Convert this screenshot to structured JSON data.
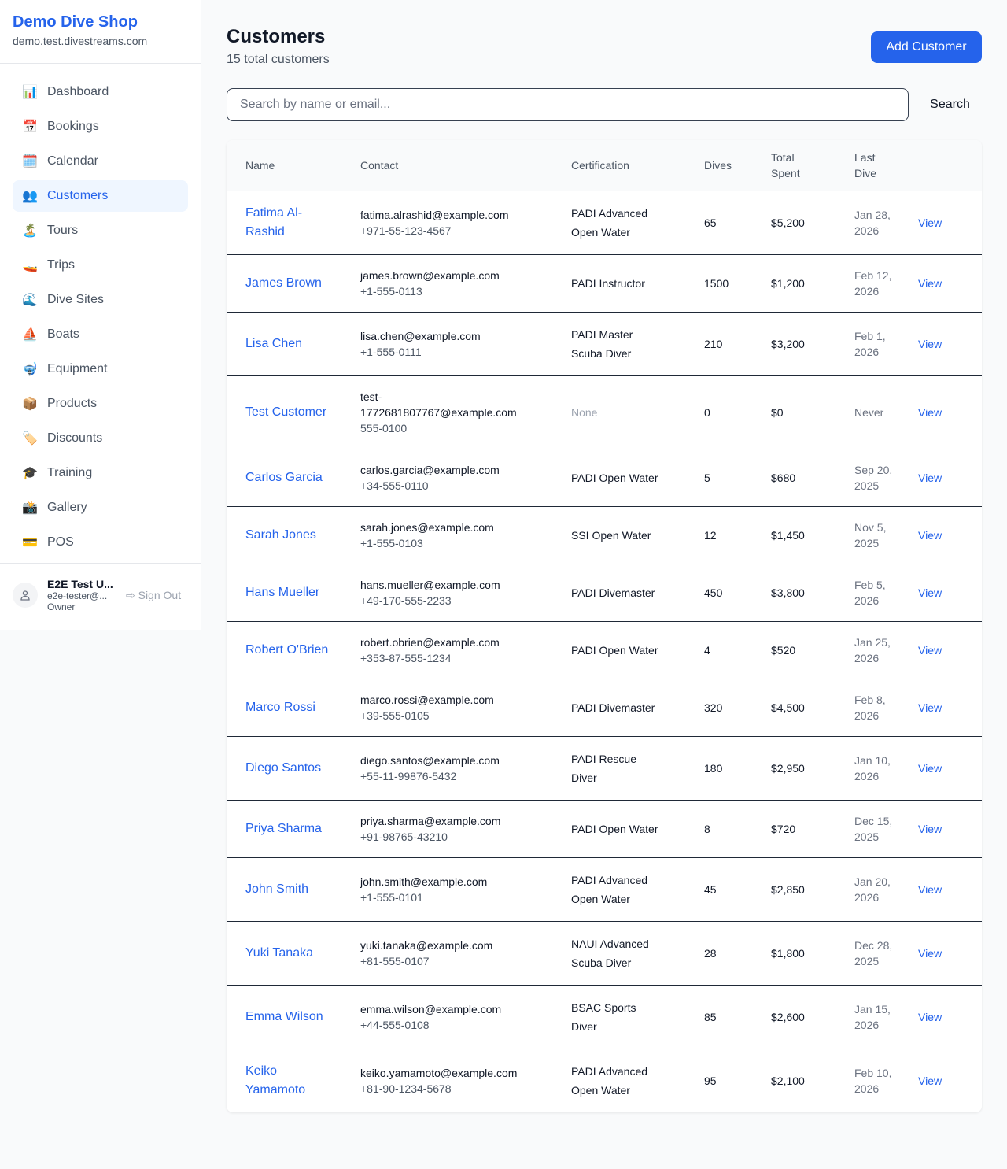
{
  "sidebar": {
    "brand": "Demo Dive Shop",
    "domain": "demo.test.divestreams.com",
    "items": [
      {
        "label": "Dashboard",
        "icon": "📊",
        "name": "chart-icon"
      },
      {
        "label": "Bookings",
        "icon": "📅",
        "name": "calendar-date-icon"
      },
      {
        "label": "Calendar",
        "icon": "🗓️",
        "name": "calendar-icon"
      },
      {
        "label": "Customers",
        "icon": "👥",
        "name": "users-icon",
        "active": true
      },
      {
        "label": "Tours",
        "icon": "🏝️",
        "name": "island-icon"
      },
      {
        "label": "Trips",
        "icon": "🚤",
        "name": "speedboat-icon"
      },
      {
        "label": "Dive Sites",
        "icon": "🌊",
        "name": "wave-icon"
      },
      {
        "label": "Boats",
        "icon": "⛵",
        "name": "sailboat-icon"
      },
      {
        "label": "Equipment",
        "icon": "🤿",
        "name": "diving-mask-icon"
      },
      {
        "label": "Products",
        "icon": "📦",
        "name": "package-icon"
      },
      {
        "label": "Discounts",
        "icon": "🏷️",
        "name": "tag-icon"
      },
      {
        "label": "Training",
        "icon": "🎓",
        "name": "graduation-cap-icon"
      },
      {
        "label": "Gallery",
        "icon": "📸",
        "name": "camera-icon"
      },
      {
        "label": "POS",
        "icon": "💳",
        "name": "credit-card-icon"
      }
    ],
    "user": {
      "name": "E2E Test U...",
      "email": "e2e-tester@...",
      "role": "Owner",
      "sign_out": "Sign Out"
    }
  },
  "header": {
    "title": "Customers",
    "subtitle": "15 total customers",
    "add_button": "Add Customer"
  },
  "search": {
    "placeholder": "Search by name or email...",
    "button": "Search"
  },
  "table": {
    "columns": [
      "Name",
      "Contact",
      "Certification",
      "Dives",
      "Total Spent",
      "Last Dive"
    ],
    "view_label": "View",
    "rows": [
      [
        "Fatima Al-Rashid",
        "fatima.alrashid@example.com",
        "+971-55-123-4567",
        "PADI Advanced Open Water",
        "65",
        "$5,200",
        "Jan 28, 2026"
      ],
      [
        "James Brown",
        "james.brown@example.com",
        "+1-555-0113",
        "PADI Instructor",
        "1500",
        "$1,200",
        "Feb 12, 2026"
      ],
      [
        "Lisa Chen",
        "lisa.chen@example.com",
        "+1-555-0111",
        "PADI Master Scuba Diver",
        "210",
        "$3,200",
        "Feb 1, 2026"
      ],
      [
        "Test Customer",
        "test-1772681807767@example.com",
        "555-0100",
        "None",
        "0",
        "$0",
        "Never"
      ],
      [
        "Carlos Garcia",
        "carlos.garcia@example.com",
        "+34-555-0110",
        "PADI Open Water",
        "5",
        "$680",
        "Sep 20, 2025"
      ],
      [
        "Sarah Jones",
        "sarah.jones@example.com",
        "+1-555-0103",
        "SSI Open Water",
        "12",
        "$1,450",
        "Nov 5, 2025"
      ],
      [
        "Hans Mueller",
        "hans.mueller@example.com",
        "+49-170-555-2233",
        "PADI Divemaster",
        "450",
        "$3,800",
        "Feb 5, 2026"
      ],
      [
        "Robert O'Brien",
        "robert.obrien@example.com",
        "+353-87-555-1234",
        "PADI Open Water",
        "4",
        "$520",
        "Jan 25, 2026"
      ],
      [
        "Marco Rossi",
        "marco.rossi@example.com",
        "+39-555-0105",
        "PADI Divemaster",
        "320",
        "$4,500",
        "Feb 8, 2026"
      ],
      [
        "Diego Santos",
        "diego.santos@example.com",
        "+55-11-99876-5432",
        "PADI Rescue Diver",
        "180",
        "$2,950",
        "Jan 10, 2026"
      ],
      [
        "Priya Sharma",
        "priya.sharma@example.com",
        "+91-98765-43210",
        "PADI Open Water",
        "8",
        "$720",
        "Dec 15, 2025"
      ],
      [
        "John Smith",
        "john.smith@example.com",
        "+1-555-0101",
        "PADI Advanced Open Water",
        "45",
        "$2,850",
        "Jan 20, 2026"
      ],
      [
        "Yuki Tanaka",
        "yuki.tanaka@example.com",
        "+81-555-0107",
        "NAUI Advanced Scuba Diver",
        "28",
        "$1,800",
        "Dec 28, 2025"
      ],
      [
        "Emma Wilson",
        "emma.wilson@example.com",
        "+44-555-0108",
        "BSAC Sports Diver",
        "85",
        "$2,600",
        "Jan 15, 2026"
      ],
      [
        "Keiko Yamamoto",
        "keiko.yamamoto@example.com",
        "+81-90-1234-5678",
        "PADI Advanced Open Water",
        "95",
        "$2,100",
        "Feb 10, 2026"
      ]
    ]
  }
}
